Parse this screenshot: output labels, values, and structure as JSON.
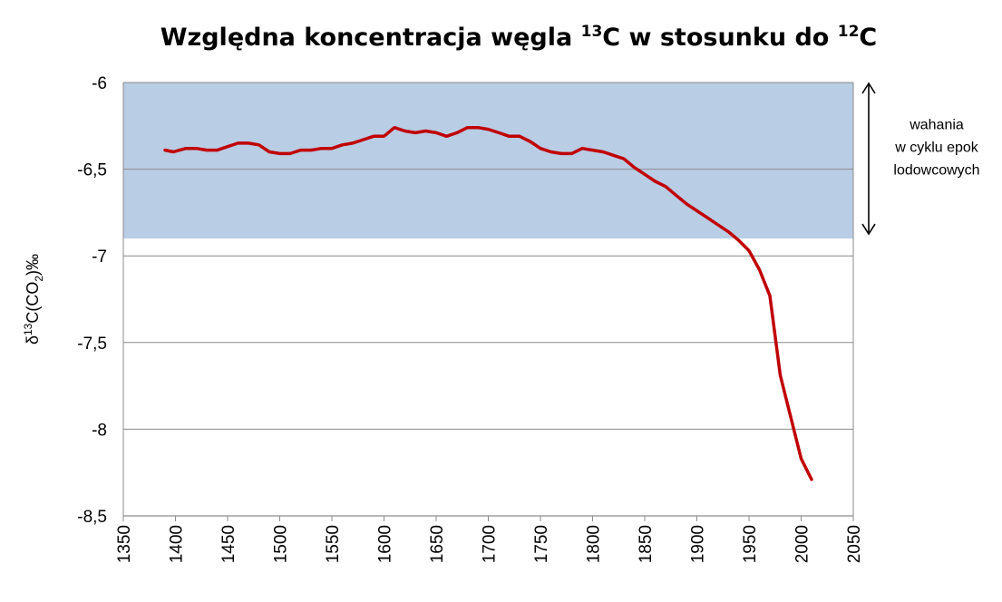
{
  "chart_data": {
    "type": "line",
    "title": {
      "part1": "Względna koncentracja węgla ",
      "sup1": "13",
      "part2": "C w stosunku do ",
      "sup2": "12",
      "part3": "C"
    },
    "ylabel": {
      "prefix": "δ",
      "sup": "13",
      "mid": "C(CO",
      "sub": "2",
      "suffix": ")‰"
    },
    "xlabel": "",
    "xlim": [
      1350,
      2050
    ],
    "ylim": [
      -8.5,
      -6
    ],
    "x_ticks": [
      1350,
      1400,
      1450,
      1500,
      1550,
      1600,
      1650,
      1700,
      1750,
      1800,
      1850,
      1900,
      1950,
      2000,
      2050
    ],
    "y_ticks": [
      -6,
      -6.5,
      -7,
      -7.5,
      -8,
      -8.5
    ],
    "y_tick_labels": [
      "-6",
      "-6,5",
      "-7",
      "-7,5",
      "-8",
      "-8,5"
    ],
    "grid": "horizontal",
    "band": {
      "y_from": -6.9,
      "y_to": -6,
      "color": "#b9cde5",
      "label_lines": [
        "wahania",
        "w cyklu epok",
        "lodowcowych"
      ]
    },
    "series": [
      {
        "color": "#c00000",
        "points": [
          [
            1390,
            -6.39
          ],
          [
            1398,
            -6.4
          ],
          [
            1410,
            -6.38
          ],
          [
            1420,
            -6.38
          ],
          [
            1430,
            -6.39
          ],
          [
            1440,
            -6.39
          ],
          [
            1450,
            -6.37
          ],
          [
            1460,
            -6.35
          ],
          [
            1470,
            -6.35
          ],
          [
            1480,
            -6.36
          ],
          [
            1490,
            -6.4
          ],
          [
            1500,
            -6.41
          ],
          [
            1510,
            -6.41
          ],
          [
            1520,
            -6.39
          ],
          [
            1530,
            -6.39
          ],
          [
            1540,
            -6.38
          ],
          [
            1550,
            -6.38
          ],
          [
            1560,
            -6.36
          ],
          [
            1570,
            -6.35
          ],
          [
            1580,
            -6.33
          ],
          [
            1590,
            -6.31
          ],
          [
            1600,
            -6.31
          ],
          [
            1610,
            -6.26
          ],
          [
            1620,
            -6.28
          ],
          [
            1630,
            -6.29
          ],
          [
            1640,
            -6.28
          ],
          [
            1650,
            -6.29
          ],
          [
            1660,
            -6.31
          ],
          [
            1670,
            -6.29
          ],
          [
            1680,
            -6.26
          ],
          [
            1690,
            -6.26
          ],
          [
            1700,
            -6.27
          ],
          [
            1710,
            -6.29
          ],
          [
            1720,
            -6.31
          ],
          [
            1730,
            -6.31
          ],
          [
            1740,
            -6.34
          ],
          [
            1750,
            -6.38
          ],
          [
            1760,
            -6.4
          ],
          [
            1770,
            -6.41
          ],
          [
            1780,
            -6.41
          ],
          [
            1790,
            -6.38
          ],
          [
            1800,
            -6.39
          ],
          [
            1810,
            -6.4
          ],
          [
            1820,
            -6.42
          ],
          [
            1830,
            -6.44
          ],
          [
            1840,
            -6.49
          ],
          [
            1850,
            -6.53
          ],
          [
            1860,
            -6.57
          ],
          [
            1870,
            -6.6
          ],
          [
            1880,
            -6.65
          ],
          [
            1890,
            -6.7
          ],
          [
            1900,
            -6.74
          ],
          [
            1910,
            -6.78
          ],
          [
            1920,
            -6.82
          ],
          [
            1930,
            -6.86
          ],
          [
            1940,
            -6.91
          ],
          [
            1950,
            -6.97
          ],
          [
            1960,
            -7.08
          ],
          [
            1970,
            -7.23
          ],
          [
            1980,
            -7.69
          ],
          [
            1990,
            -7.93
          ],
          [
            2000,
            -8.17
          ],
          [
            2010,
            -8.29
          ]
        ]
      }
    ]
  }
}
